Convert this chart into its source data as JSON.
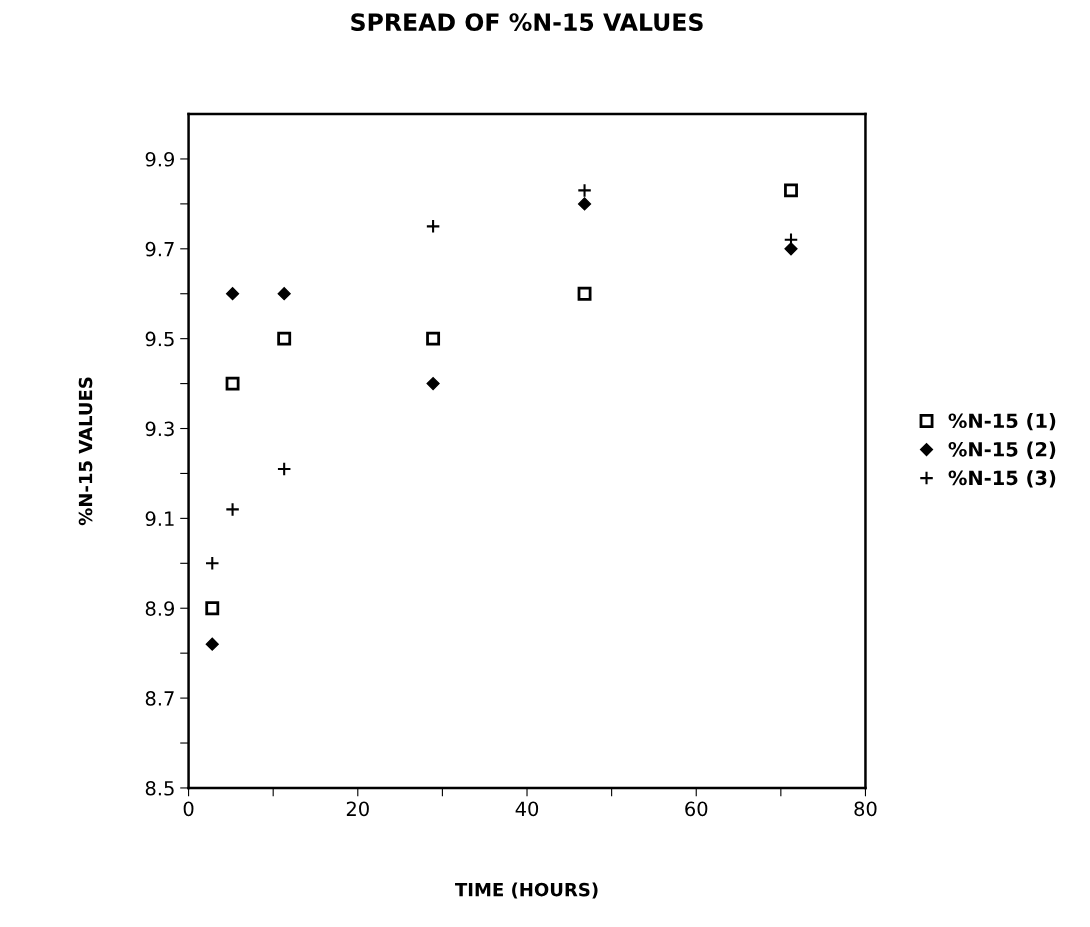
{
  "chart_data": {
    "type": "scatter",
    "title": "SPREAD OF %N-15 VALUES",
    "xlabel": "TIME (HOURS)",
    "ylabel": "%N-15 VALUES",
    "x": [
      2.8,
      5.2,
      11.3,
      28.9,
      46.8,
      71.2
    ],
    "series": [
      {
        "name": "%N-15 (1)",
        "color": "#000000",
        "marker": "square",
        "values": [
          8.9,
          9.4,
          9.5,
          9.5,
          9.6,
          9.83
        ]
      },
      {
        "name": "%N-15 (2)",
        "color": "#000000",
        "marker": "diamond",
        "values": [
          8.82,
          9.6,
          9.6,
          9.4,
          9.8,
          9.7
        ]
      },
      {
        "name": "%N-15 (3)",
        "color": "#000000",
        "marker": "cross",
        "values": [
          9.0,
          9.12,
          9.21,
          9.75,
          9.83,
          9.72
        ]
      }
    ],
    "xlim": [
      0,
      80
    ],
    "xticks": [
      0,
      {
        "value": 10,
        "label": null
      },
      20,
      {
        "value": 30,
        "label": null
      },
      40,
      {
        "value": 50,
        "label": null
      },
      60,
      {
        "value": 70,
        "label": null
      },
      80
    ],
    "ylim": [
      8.5,
      10.0
    ],
    "yticks": [
      8.5,
      {
        "value": 8.6,
        "label": null
      },
      8.7,
      {
        "value": 8.8,
        "label": null
      },
      8.9,
      {
        "value": 9.0,
        "label": null
      },
      9.1,
      {
        "value": 9.2,
        "label": null
      },
      9.3,
      {
        "value": 9.4,
        "label": null
      },
      9.5,
      {
        "value": 9.6,
        "label": null
      },
      9.7,
      {
        "value": 9.8,
        "label": null
      },
      9.9
    ],
    "grid": false,
    "legend": "right"
  }
}
